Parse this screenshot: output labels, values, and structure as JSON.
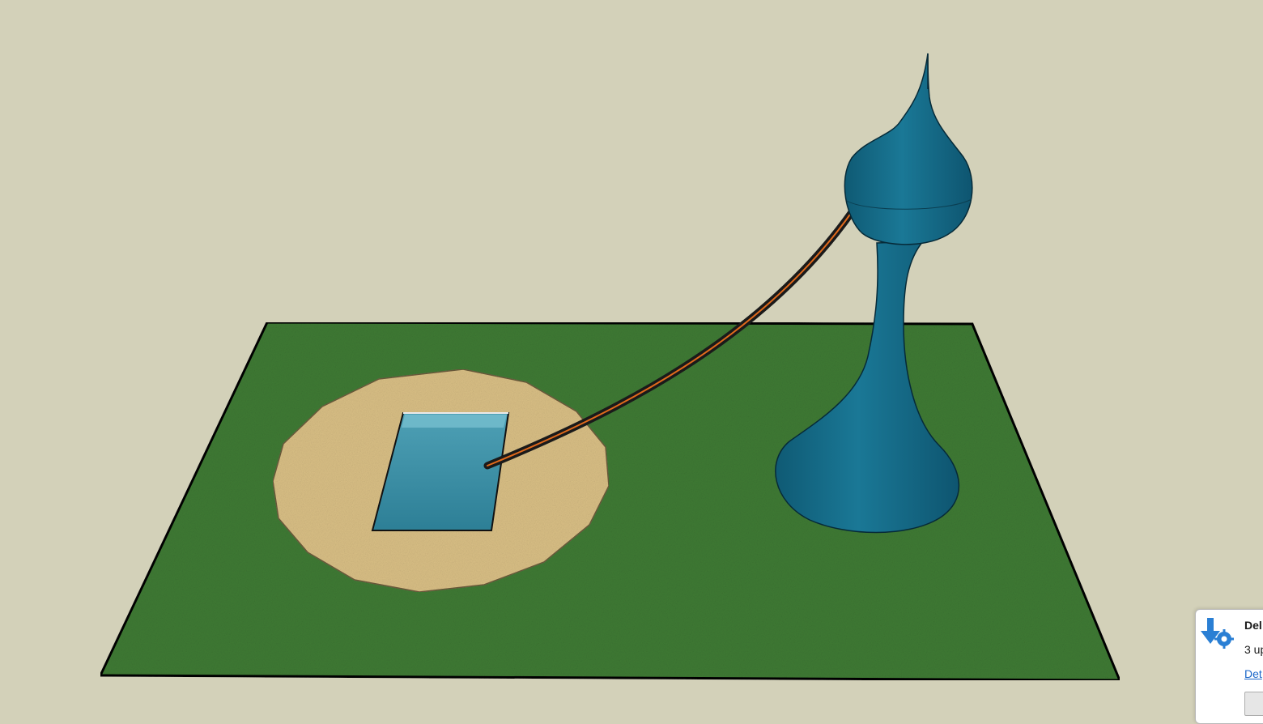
{
  "scene": {
    "background_color": "#d3d1b9",
    "grass_color": "#3f7a34",
    "sand_color": "#d9bf85",
    "pool_color": "#3689a0",
    "tower_color": "#136a87",
    "pipe_color": "#1a1a1a",
    "pipe_highlight_color": "#e06a1c"
  },
  "notification": {
    "title": "Del",
    "body": "3 up",
    "link": "Det",
    "icon": "download-gear-icon",
    "accent_color": "#2a7fd4"
  }
}
